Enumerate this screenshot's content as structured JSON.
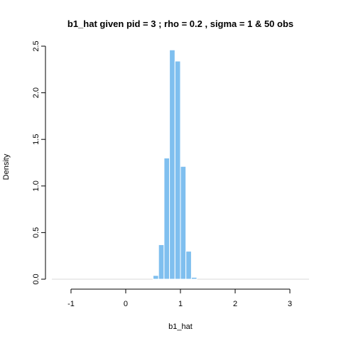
{
  "chart_data": {
    "type": "histogram",
    "title": "b1_hat given pid =  3 ; rho = 0.2 , sigma = 1 & 50 obs",
    "xlabel": "b1_hat",
    "ylabel": "Density",
    "xlim": [
      -1.35,
      3.35
    ],
    "ylim": [
      0,
      2.5
    ],
    "x_ticks": [
      -1,
      0,
      1,
      2,
      3
    ],
    "y_ticks": [
      0.0,
      0.5,
      1.0,
      1.5,
      2.0,
      2.5
    ],
    "x_tick_labels": [
      "-1",
      "0",
      "1",
      "2",
      "3"
    ],
    "y_tick_labels": [
      "0.0",
      "0.5",
      "1.0",
      "1.5",
      "2.0",
      "2.5"
    ],
    "bin_width": 0.1,
    "bins": [
      {
        "x0": 0.5,
        "x1": 0.6,
        "density": 0.04
      },
      {
        "x0": 0.6,
        "x1": 0.7,
        "density": 0.37
      },
      {
        "x0": 0.7,
        "x1": 0.8,
        "density": 1.3
      },
      {
        "x0": 0.8,
        "x1": 0.9,
        "density": 2.46
      },
      {
        "x0": 0.9,
        "x1": 1.0,
        "density": 2.34
      },
      {
        "x0": 1.0,
        "x1": 1.1,
        "density": 1.21
      },
      {
        "x0": 1.1,
        "x1": 1.2,
        "density": 0.3
      },
      {
        "x0": 1.2,
        "x1": 1.3,
        "density": 0.02
      }
    ],
    "bar_color": "#7fbfef",
    "bar_border": "#ffffff",
    "grid": false
  }
}
